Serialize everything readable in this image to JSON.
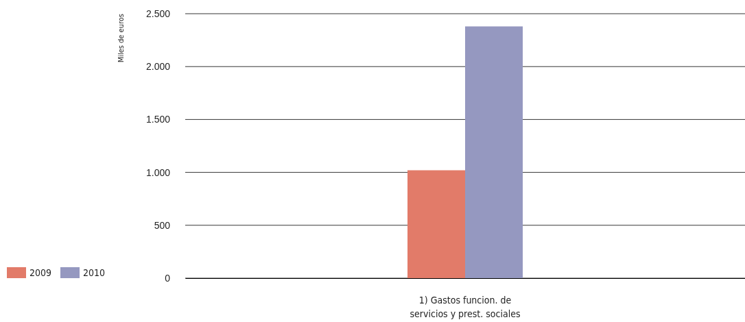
{
  "chart_data": {
    "type": "bar",
    "ylabel": "Miles de euros",
    "categories": [
      "1) Gastos funcion. de servicios y prest. sociales"
    ],
    "series": [
      {
        "name": "2009",
        "color": "#e27b69",
        "values": [
          1020
        ]
      },
      {
        "name": "2010",
        "color": "#9598c0",
        "values": [
          2380
        ]
      }
    ],
    "ylim": [
      0,
      2500
    ],
    "yticks": [
      {
        "value": 0,
        "label": "0"
      },
      {
        "value": 500,
        "label": "500"
      },
      {
        "value": 1000,
        "label": "1.000"
      },
      {
        "value": 1500,
        "label": "1.500"
      },
      {
        "value": 2000,
        "label": "2.000"
      },
      {
        "value": 2500,
        "label": "2.500"
      }
    ],
    "grid": "y",
    "legend": "bottom left"
  }
}
